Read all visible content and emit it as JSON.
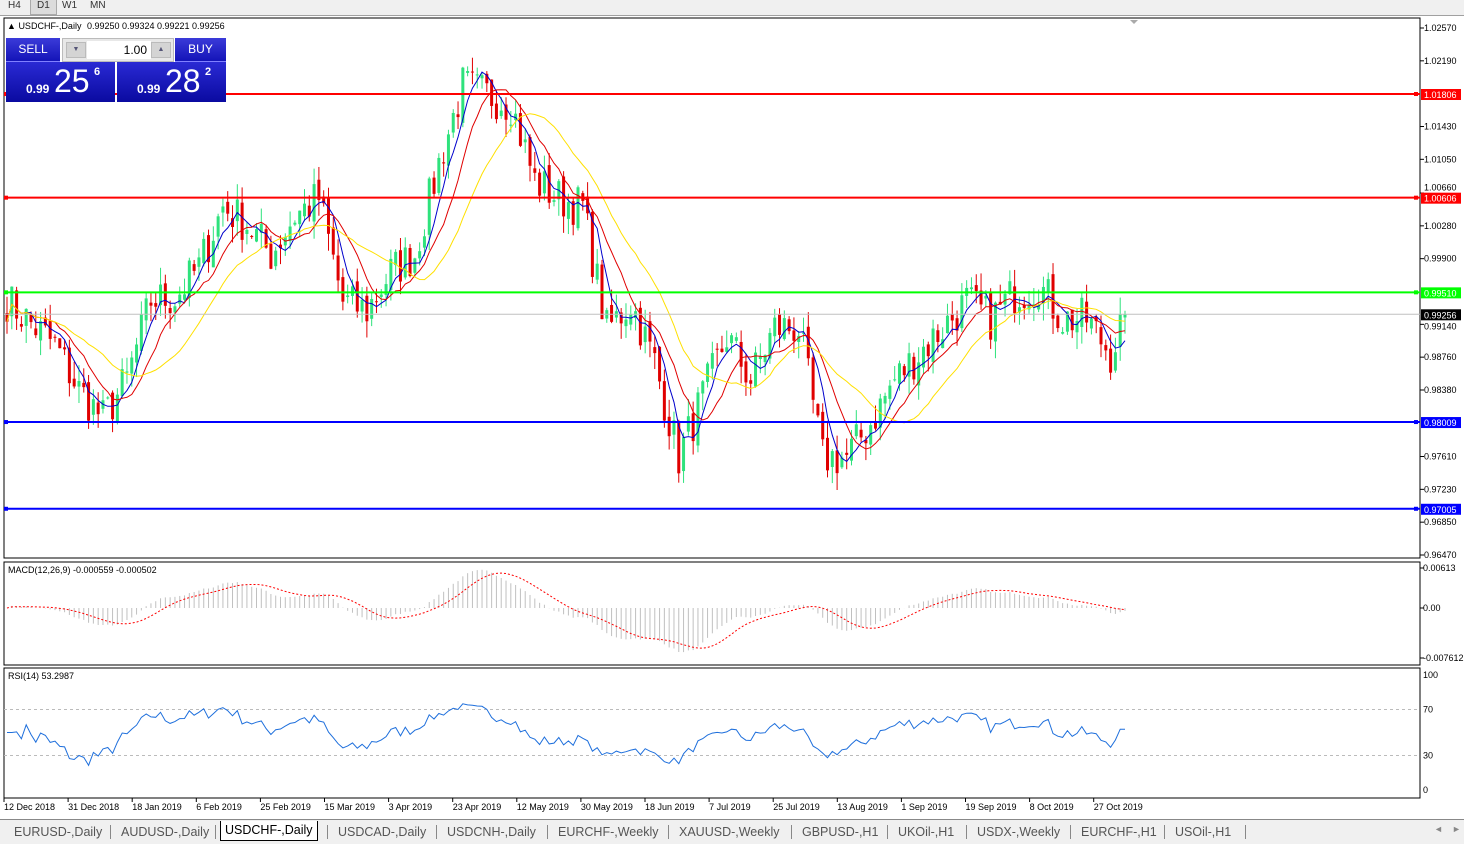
{
  "timeframes": [
    "H4",
    "D1",
    "W1",
    "MN"
  ],
  "active_timeframe": "D1",
  "chart": {
    "symbol_info": "USDCHF-,Daily",
    "ohlc": "0.99250 0.99324 0.99221 0.99256",
    "price_axis": [
      "1.02570",
      "1.02190",
      "1.01430",
      "1.01050",
      "1.00660",
      "1.00280",
      "0.99900",
      "0.99140",
      "0.98760",
      "0.98380",
      "0.97610",
      "0.97230",
      "0.96850",
      "0.96470"
    ],
    "price_range": [
      0.9647,
      1.0257
    ],
    "levels": [
      {
        "price": 1.01806,
        "label": "1.01806",
        "color": "#ff0000"
      },
      {
        "price": 1.00606,
        "label": "1.00606",
        "color": "#ff0000"
      },
      {
        "price": 0.9951,
        "label": "0.99510",
        "color": "#00ff00"
      },
      {
        "price": 0.98009,
        "label": "0.98009",
        "color": "#0000ff"
      },
      {
        "price": 0.97005,
        "label": "0.97005",
        "color": "#0000ff"
      }
    ],
    "current_price": {
      "price": 0.99256,
      "label": "0.99256"
    },
    "bull_color": "#2ee27c",
    "bear_color": "#e00000",
    "ma_colors": [
      "#0000cc",
      "#e00000",
      "#ffe000"
    ],
    "close_waypoints": [
      0.9942,
      0.9915,
      0.989,
      0.9838,
      0.9805,
      0.985,
      0.9942,
      0.9945,
      0.998,
      1.005,
      1.003,
      0.9995,
      1.004,
      1.006,
      0.994,
      0.993,
      0.9975,
      0.9995,
      1.01,
      1.019,
      1.018,
      1.017,
      1.008,
      1.006,
      1.005,
      0.9907,
      0.994,
      0.987,
      0.976,
      0.983,
      0.99,
      0.985,
      0.991,
      0.991,
      0.976,
      0.976,
      0.98,
      0.985,
      0.988,
      0.991,
      0.994,
      0.992,
      0.995,
      0.996,
      0.992,
      0.992,
      0.988,
      0.99256
    ],
    "date_axis": [
      "12 Dec 2018",
      "31 Dec 2018",
      "18 Jan 2019",
      "6 Feb 2019",
      "25 Feb 2019",
      "15 Mar 2019",
      "3 Apr 2019",
      "23 Apr 2019",
      "12 May 2019",
      "30 May 2019",
      "18 Jun 2019",
      "7 Jul 2019",
      "25 Jul 2019",
      "13 Aug 2019",
      "1 Sep 2019",
      "19 Sep 2019",
      "8 Oct 2019",
      "27 Oct 2019"
    ]
  },
  "trade_panel": {
    "sell_label": "SELL",
    "buy_label": "BUY",
    "lot": "1.00",
    "sell_prefix": "0.99",
    "sell_big": "25",
    "sell_sup": "6",
    "buy_prefix": "0.99",
    "buy_big": "28",
    "buy_sup": "2"
  },
  "macd": {
    "label": "MACD(12,26,9) -0.000559 -0.000502",
    "axis": [
      "0.00613",
      "0.00",
      "-0.007612"
    ],
    "range": [
      -0.007612,
      0.00613
    ],
    "hist_color": "#c0c0c0",
    "signal_color": "#ff0000"
  },
  "rsi": {
    "label": "RSI(14) 53.2987",
    "axis": [
      "100",
      "70",
      "30",
      "0"
    ],
    "color": "#1e6fdc"
  },
  "tabs": [
    "EURUSD-,Daily",
    "AUDUSD-,Daily",
    "USDCHF-,Daily",
    "USDCAD-,Daily",
    "USDCNH-,Daily",
    "EURCHF-,Weekly",
    "XAUUSD-,Weekly",
    "GBPUSD-,H1",
    "UKOil-,H1",
    "USDX-,Weekly",
    "EURCHF-,H1",
    "USOil-,H1"
  ],
  "active_tab": "USDCHF-,Daily"
}
